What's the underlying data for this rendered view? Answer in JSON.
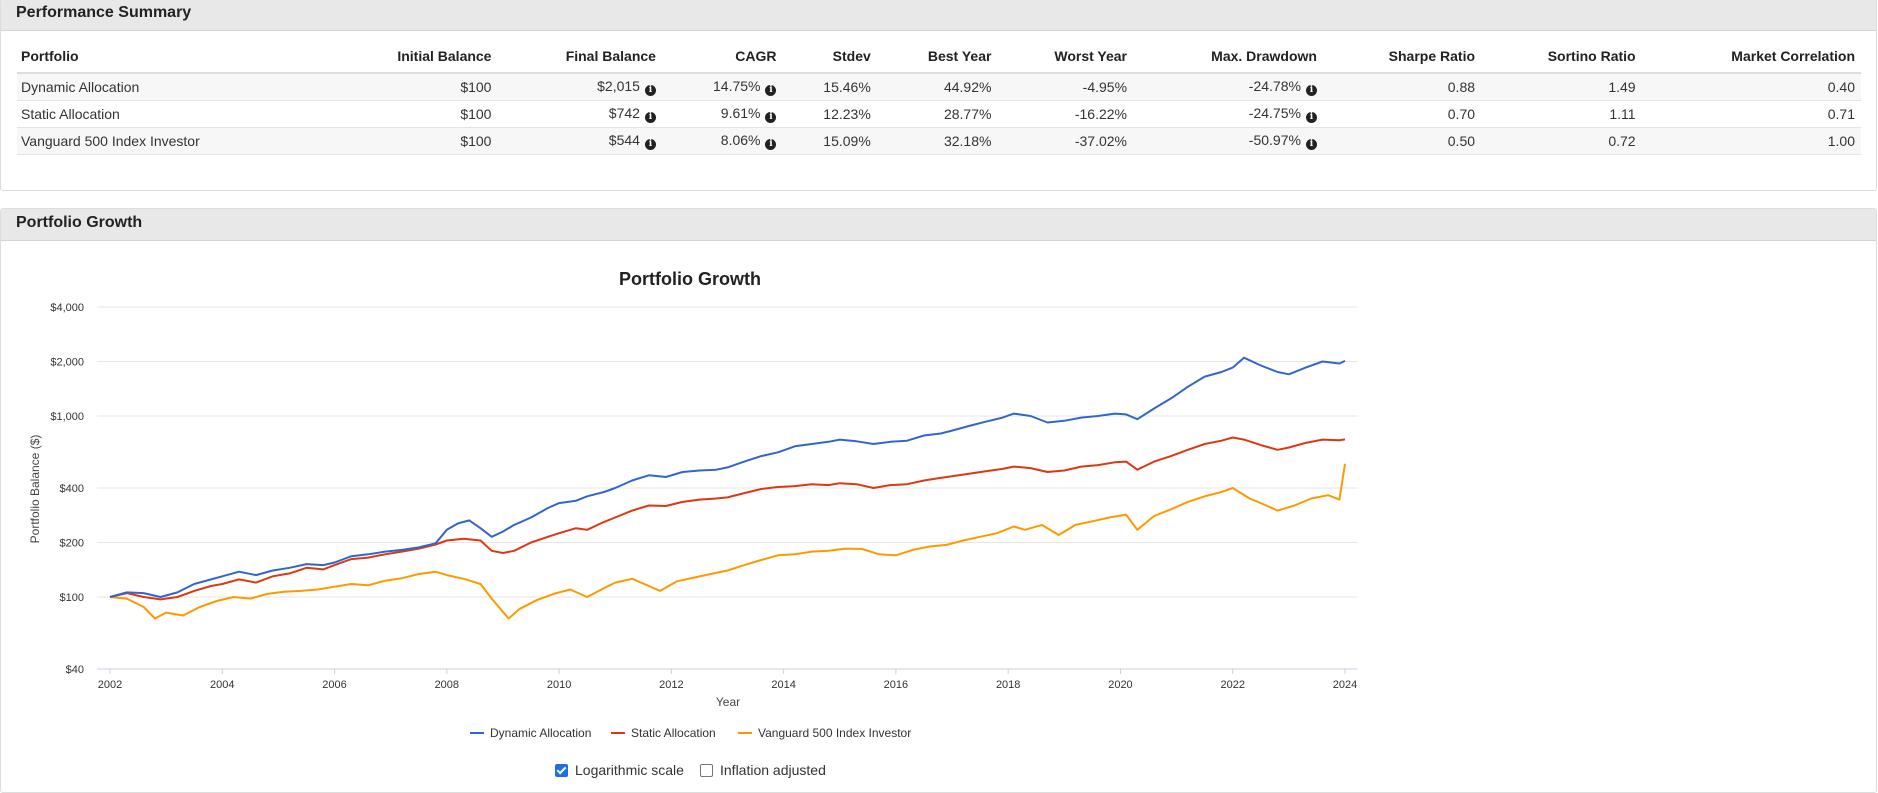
{
  "summary": {
    "heading": "Performance Summary",
    "columns": [
      "Portfolio",
      "Initial Balance",
      "Final Balance",
      "CAGR",
      "Stdev",
      "Best Year",
      "Worst Year",
      "Max. Drawdown",
      "Sharpe Ratio",
      "Sortino Ratio",
      "Market Correlation"
    ],
    "rows": [
      {
        "portfolio": "Dynamic Allocation",
        "initial": "$100",
        "final": "$2,015",
        "cagr": "14.75%",
        "stdev": "15.46%",
        "best": "44.92%",
        "worst": "-4.95%",
        "drawdown": "-24.78%",
        "sharpe": "0.88",
        "sortino": "1.49",
        "corr": "0.40"
      },
      {
        "portfolio": "Static Allocation",
        "initial": "$100",
        "final": "$742",
        "cagr": "9.61%",
        "stdev": "12.23%",
        "best": "28.77%",
        "worst": "-16.22%",
        "drawdown": "-24.75%",
        "sharpe": "0.70",
        "sortino": "1.11",
        "corr": "0.71"
      },
      {
        "portfolio": "Vanguard 500 Index Investor",
        "initial": "$100",
        "final": "$544",
        "cagr": "8.06%",
        "stdev": "15.09%",
        "best": "32.18%",
        "worst": "-37.02%",
        "drawdown": "-50.97%",
        "sharpe": "0.50",
        "sortino": "0.72",
        "corr": "1.00"
      }
    ]
  },
  "growth": {
    "heading": "Portfolio Growth",
    "options": {
      "log_scale_label": "Logarithmic scale",
      "log_scale_checked": true,
      "inflation_label": "Inflation adjusted",
      "inflation_checked": false
    }
  },
  "chart_data": {
    "type": "line",
    "title": "Portfolio Growth",
    "xlabel": "Year",
    "ylabel": "Portfolio Balance ($)",
    "y_scale": "log",
    "ylim": [
      40,
      4000
    ],
    "xlim": [
      2002,
      2024
    ],
    "yticks": [
      {
        "value": 40,
        "label": "$40"
      },
      {
        "value": 100,
        "label": "$100"
      },
      {
        "value": 200,
        "label": "$200"
      },
      {
        "value": 400,
        "label": "$400"
      },
      {
        "value": 1000,
        "label": "$1,000"
      },
      {
        "value": 2000,
        "label": "$2,000"
      },
      {
        "value": 4000,
        "label": "$4,000"
      }
    ],
    "xticks": [
      {
        "value": 2002,
        "label": "2002"
      },
      {
        "value": 2004,
        "label": "2004"
      },
      {
        "value": 2006,
        "label": "2006"
      },
      {
        "value": 2008,
        "label": "2008"
      },
      {
        "value": 2010,
        "label": "2010"
      },
      {
        "value": 2012,
        "label": "2012"
      },
      {
        "value": 2014,
        "label": "2014"
      },
      {
        "value": 2016,
        "label": "2016"
      },
      {
        "value": 2018,
        "label": "2018"
      },
      {
        "value": 2020,
        "label": "2020"
      },
      {
        "value": 2022,
        "label": "2022"
      },
      {
        "value": 2024,
        "label": "2024"
      }
    ],
    "grid": true,
    "legend_position": "bottom",
    "series": [
      {
        "name": "Dynamic Allocation",
        "color": "#3366cc",
        "points": [
          [
            2002.0,
            100
          ],
          [
            2002.3,
            106
          ],
          [
            2002.6,
            105
          ],
          [
            2002.9,
            100
          ],
          [
            2003.2,
            106
          ],
          [
            2003.5,
            118
          ],
          [
            2003.8,
            125
          ],
          [
            2004.0,
            130
          ],
          [
            2004.3,
            138
          ],
          [
            2004.6,
            132
          ],
          [
            2004.9,
            140
          ],
          [
            2005.2,
            145
          ],
          [
            2005.5,
            152
          ],
          [
            2005.8,
            150
          ],
          [
            2006.0,
            155
          ],
          [
            2006.3,
            168
          ],
          [
            2006.6,
            172
          ],
          [
            2006.9,
            178
          ],
          [
            2007.2,
            182
          ],
          [
            2007.5,
            188
          ],
          [
            2007.8,
            198
          ],
          [
            2008.0,
            235
          ],
          [
            2008.2,
            255
          ],
          [
            2008.4,
            265
          ],
          [
            2008.6,
            240
          ],
          [
            2008.8,
            215
          ],
          [
            2009.0,
            230
          ],
          [
            2009.2,
            250
          ],
          [
            2009.5,
            275
          ],
          [
            2009.8,
            310
          ],
          [
            2010.0,
            330
          ],
          [
            2010.3,
            340
          ],
          [
            2010.5,
            360
          ],
          [
            2010.8,
            380
          ],
          [
            2011.0,
            400
          ],
          [
            2011.3,
            440
          ],
          [
            2011.6,
            470
          ],
          [
            2011.9,
            460
          ],
          [
            2012.2,
            490
          ],
          [
            2012.5,
            500
          ],
          [
            2012.8,
            505
          ],
          [
            2013.0,
            520
          ],
          [
            2013.3,
            560
          ],
          [
            2013.6,
            600
          ],
          [
            2013.9,
            630
          ],
          [
            2014.2,
            680
          ],
          [
            2014.5,
            700
          ],
          [
            2014.8,
            720
          ],
          [
            2015.0,
            740
          ],
          [
            2015.3,
            725
          ],
          [
            2015.6,
            700
          ],
          [
            2015.9,
            720
          ],
          [
            2016.2,
            730
          ],
          [
            2016.5,
            780
          ],
          [
            2016.8,
            800
          ],
          [
            2017.0,
            830
          ],
          [
            2017.3,
            880
          ],
          [
            2017.6,
            930
          ],
          [
            2017.9,
            980
          ],
          [
            2018.1,
            1030
          ],
          [
            2018.4,
            1000
          ],
          [
            2018.7,
            920
          ],
          [
            2019.0,
            940
          ],
          [
            2019.3,
            980
          ],
          [
            2019.6,
            1000
          ],
          [
            2019.9,
            1030
          ],
          [
            2020.1,
            1020
          ],
          [
            2020.3,
            960
          ],
          [
            2020.6,
            1100
          ],
          [
            2020.9,
            1250
          ],
          [
            2021.2,
            1450
          ],
          [
            2021.5,
            1650
          ],
          [
            2021.8,
            1750
          ],
          [
            2022.0,
            1850
          ],
          [
            2022.2,
            2100
          ],
          [
            2022.5,
            1900
          ],
          [
            2022.8,
            1750
          ],
          [
            2023.0,
            1700
          ],
          [
            2023.3,
            1850
          ],
          [
            2023.6,
            2000
          ],
          [
            2023.9,
            1950
          ],
          [
            2024.0,
            2015
          ]
        ]
      },
      {
        "name": "Static Allocation",
        "color": "#dc3912",
        "points": [
          [
            2002.0,
            100
          ],
          [
            2002.3,
            105
          ],
          [
            2002.6,
            100
          ],
          [
            2002.9,
            97
          ],
          [
            2003.2,
            100
          ],
          [
            2003.5,
            108
          ],
          [
            2003.8,
            115
          ],
          [
            2004.0,
            118
          ],
          [
            2004.3,
            125
          ],
          [
            2004.6,
            120
          ],
          [
            2004.9,
            130
          ],
          [
            2005.2,
            135
          ],
          [
            2005.5,
            145
          ],
          [
            2005.8,
            142
          ],
          [
            2006.0,
            150
          ],
          [
            2006.3,
            162
          ],
          [
            2006.6,
            165
          ],
          [
            2006.9,
            172
          ],
          [
            2007.2,
            178
          ],
          [
            2007.5,
            185
          ],
          [
            2007.8,
            195
          ],
          [
            2008.0,
            205
          ],
          [
            2008.3,
            210
          ],
          [
            2008.6,
            205
          ],
          [
            2008.8,
            180
          ],
          [
            2009.0,
            175
          ],
          [
            2009.2,
            180
          ],
          [
            2009.5,
            200
          ],
          [
            2009.8,
            215
          ],
          [
            2010.0,
            225
          ],
          [
            2010.3,
            240
          ],
          [
            2010.5,
            235
          ],
          [
            2010.8,
            260
          ],
          [
            2011.0,
            275
          ],
          [
            2011.3,
            300
          ],
          [
            2011.6,
            320
          ],
          [
            2011.9,
            318
          ],
          [
            2012.2,
            335
          ],
          [
            2012.5,
            345
          ],
          [
            2012.8,
            350
          ],
          [
            2013.0,
            355
          ],
          [
            2013.3,
            375
          ],
          [
            2013.6,
            395
          ],
          [
            2013.9,
            405
          ],
          [
            2014.2,
            410
          ],
          [
            2014.5,
            420
          ],
          [
            2014.8,
            415
          ],
          [
            2015.0,
            425
          ],
          [
            2015.3,
            420
          ],
          [
            2015.6,
            400
          ],
          [
            2015.9,
            415
          ],
          [
            2016.2,
            420
          ],
          [
            2016.5,
            440
          ],
          [
            2016.8,
            455
          ],
          [
            2017.0,
            465
          ],
          [
            2017.3,
            480
          ],
          [
            2017.6,
            495
          ],
          [
            2017.9,
            510
          ],
          [
            2018.1,
            525
          ],
          [
            2018.4,
            515
          ],
          [
            2018.7,
            490
          ],
          [
            2019.0,
            500
          ],
          [
            2019.3,
            525
          ],
          [
            2019.6,
            535
          ],
          [
            2019.9,
            555
          ],
          [
            2020.1,
            560
          ],
          [
            2020.3,
            505
          ],
          [
            2020.6,
            560
          ],
          [
            2020.9,
            600
          ],
          [
            2021.2,
            650
          ],
          [
            2021.5,
            700
          ],
          [
            2021.8,
            730
          ],
          [
            2022.0,
            760
          ],
          [
            2022.2,
            740
          ],
          [
            2022.5,
            690
          ],
          [
            2022.8,
            650
          ],
          [
            2023.0,
            670
          ],
          [
            2023.3,
            710
          ],
          [
            2023.6,
            740
          ],
          [
            2023.9,
            735
          ],
          [
            2024.0,
            742
          ]
        ]
      },
      {
        "name": "Vanguard 500 Index Investor",
        "color": "#ff9900",
        "points": [
          [
            2002.0,
            100
          ],
          [
            2002.3,
            98
          ],
          [
            2002.6,
            88
          ],
          [
            2002.8,
            76
          ],
          [
            2003.0,
            82
          ],
          [
            2003.3,
            79
          ],
          [
            2003.6,
            88
          ],
          [
            2003.9,
            95
          ],
          [
            2004.2,
            100
          ],
          [
            2004.5,
            98
          ],
          [
            2004.8,
            104
          ],
          [
            2005.1,
            107
          ],
          [
            2005.4,
            108
          ],
          [
            2005.7,
            110
          ],
          [
            2006.0,
            114
          ],
          [
            2006.3,
            118
          ],
          [
            2006.6,
            116
          ],
          [
            2006.9,
            123
          ],
          [
            2007.2,
            127
          ],
          [
            2007.5,
            134
          ],
          [
            2007.8,
            138
          ],
          [
            2008.0,
            132
          ],
          [
            2008.3,
            126
          ],
          [
            2008.6,
            118
          ],
          [
            2008.8,
            98
          ],
          [
            2009.1,
            76
          ],
          [
            2009.3,
            86
          ],
          [
            2009.6,
            96
          ],
          [
            2009.9,
            104
          ],
          [
            2010.2,
            110
          ],
          [
            2010.5,
            100
          ],
          [
            2010.8,
            112
          ],
          [
            2011.0,
            120
          ],
          [
            2011.3,
            126
          ],
          [
            2011.6,
            115
          ],
          [
            2011.8,
            108
          ],
          [
            2012.1,
            122
          ],
          [
            2012.4,
            128
          ],
          [
            2012.7,
            134
          ],
          [
            2013.0,
            140
          ],
          [
            2013.3,
            150
          ],
          [
            2013.6,
            160
          ],
          [
            2013.9,
            170
          ],
          [
            2014.2,
            172
          ],
          [
            2014.5,
            178
          ],
          [
            2014.8,
            180
          ],
          [
            2015.1,
            185
          ],
          [
            2015.4,
            184
          ],
          [
            2015.7,
            172
          ],
          [
            2016.0,
            170
          ],
          [
            2016.3,
            182
          ],
          [
            2016.6,
            190
          ],
          [
            2016.9,
            194
          ],
          [
            2017.2,
            205
          ],
          [
            2017.5,
            215
          ],
          [
            2017.8,
            225
          ],
          [
            2018.1,
            245
          ],
          [
            2018.3,
            235
          ],
          [
            2018.6,
            250
          ],
          [
            2018.9,
            220
          ],
          [
            2019.2,
            250
          ],
          [
            2019.5,
            262
          ],
          [
            2019.8,
            275
          ],
          [
            2020.1,
            285
          ],
          [
            2020.3,
            235
          ],
          [
            2020.6,
            280
          ],
          [
            2020.9,
            305
          ],
          [
            2021.2,
            335
          ],
          [
            2021.5,
            360
          ],
          [
            2021.8,
            380
          ],
          [
            2022.0,
            400
          ],
          [
            2022.3,
            350
          ],
          [
            2022.6,
            320
          ],
          [
            2022.8,
            300
          ],
          [
            2023.1,
            320
          ],
          [
            2023.4,
            350
          ],
          [
            2023.7,
            365
          ],
          [
            2023.9,
            345
          ],
          [
            2024.0,
            544
          ]
        ]
      }
    ]
  }
}
